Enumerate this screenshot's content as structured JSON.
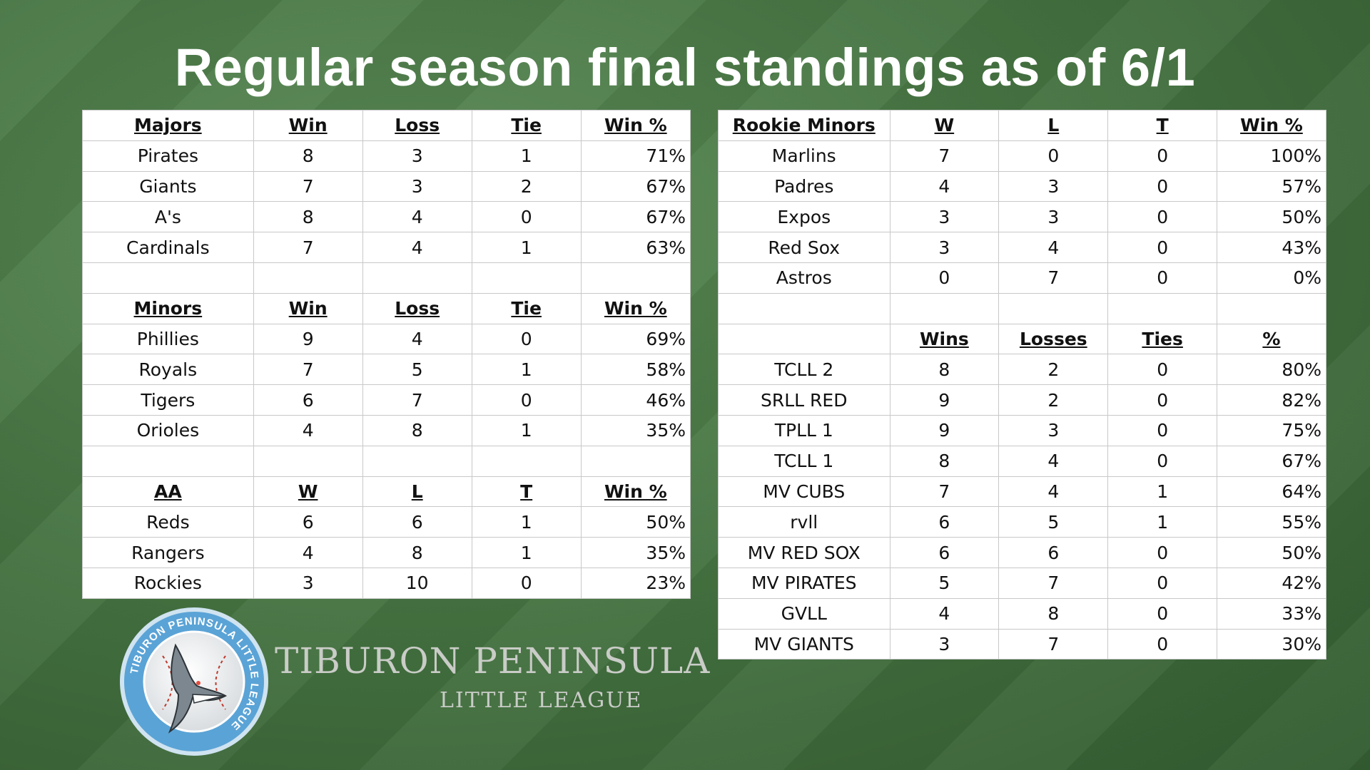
{
  "title": "Regular season final standings as of 6/1",
  "left_table": {
    "sections": [
      {
        "headers": [
          "Majors",
          "Win",
          "Loss",
          "Tie",
          "Win %"
        ],
        "rows": [
          [
            "Pirates",
            "8",
            "3",
            "1",
            "71%"
          ],
          [
            "Giants",
            "7",
            "3",
            "2",
            "67%"
          ],
          [
            "A's",
            "8",
            "4",
            "0",
            "67%"
          ],
          [
            "Cardinals",
            "7",
            "4",
            "1",
            "63%"
          ]
        ]
      },
      {
        "headers": [
          "Minors",
          "Win",
          "Loss",
          "Tie",
          "Win %"
        ],
        "rows": [
          [
            "Phillies",
            "9",
            "4",
            "0",
            "69%"
          ],
          [
            "Royals",
            "7",
            "5",
            "1",
            "58%"
          ],
          [
            "Tigers",
            "6",
            "7",
            "0",
            "46%"
          ],
          [
            "Orioles",
            "4",
            "8",
            "1",
            "35%"
          ]
        ]
      },
      {
        "headers": [
          "AA",
          "W",
          "L",
          "T",
          "Win %"
        ],
        "rows": [
          [
            "Reds",
            "6",
            "6",
            "1",
            "50%"
          ],
          [
            "Rangers",
            "4",
            "8",
            "1",
            "35%"
          ],
          [
            "Rockies",
            "3",
            "10",
            "0",
            "23%"
          ]
        ]
      }
    ]
  },
  "right_table": {
    "sections": [
      {
        "headers": [
          "Rookie Minors",
          "W",
          "L",
          "T",
          "Win %"
        ],
        "rows": [
          [
            "Marlins",
            "7",
            "0",
            "0",
            "100%"
          ],
          [
            "Padres",
            "4",
            "3",
            "0",
            "57%"
          ],
          [
            "Expos",
            "3",
            "3",
            "0",
            "50%"
          ],
          [
            "Red Sox",
            "3",
            "4",
            "0",
            "43%"
          ],
          [
            "Astros",
            "0",
            "7",
            "0",
            "0%"
          ]
        ]
      },
      {
        "headers": [
          "",
          "Wins",
          "Losses",
          "Ties",
          "%"
        ],
        "rows": [
          [
            "TCLL 2",
            "8",
            "2",
            "0",
            "80%"
          ],
          [
            "SRLL RED",
            "9",
            "2",
            "0",
            "82%"
          ],
          [
            "TPLL 1",
            "9",
            "3",
            "0",
            "75%"
          ],
          [
            "TCLL 1",
            "8",
            "4",
            "0",
            "67%"
          ],
          [
            "MV CUBS",
            "7",
            "4",
            "1",
            "64%"
          ],
          [
            "rvll",
            "6",
            "5",
            "1",
            "55%"
          ],
          [
            "MV RED SOX",
            "6",
            "6",
            "0",
            "50%"
          ],
          [
            "MV PIRATES",
            "5",
            "7",
            "0",
            "42%"
          ],
          [
            "GVLL",
            "4",
            "8",
            "0",
            "33%"
          ],
          [
            "MV GIANTS",
            "3",
            "7",
            "0",
            "30%"
          ]
        ]
      }
    ]
  },
  "logo": {
    "ring_text": "TIBURON PENINSULA LITTLE LEAGUE",
    "icon": "shark-baseball-icon",
    "ring_color": "#5aa3d6",
    "ring_border_color": "#cfe3f0"
  },
  "brand": {
    "line1": "TIBURON PENINSULA",
    "line2": "LITTLE LEAGUE"
  }
}
